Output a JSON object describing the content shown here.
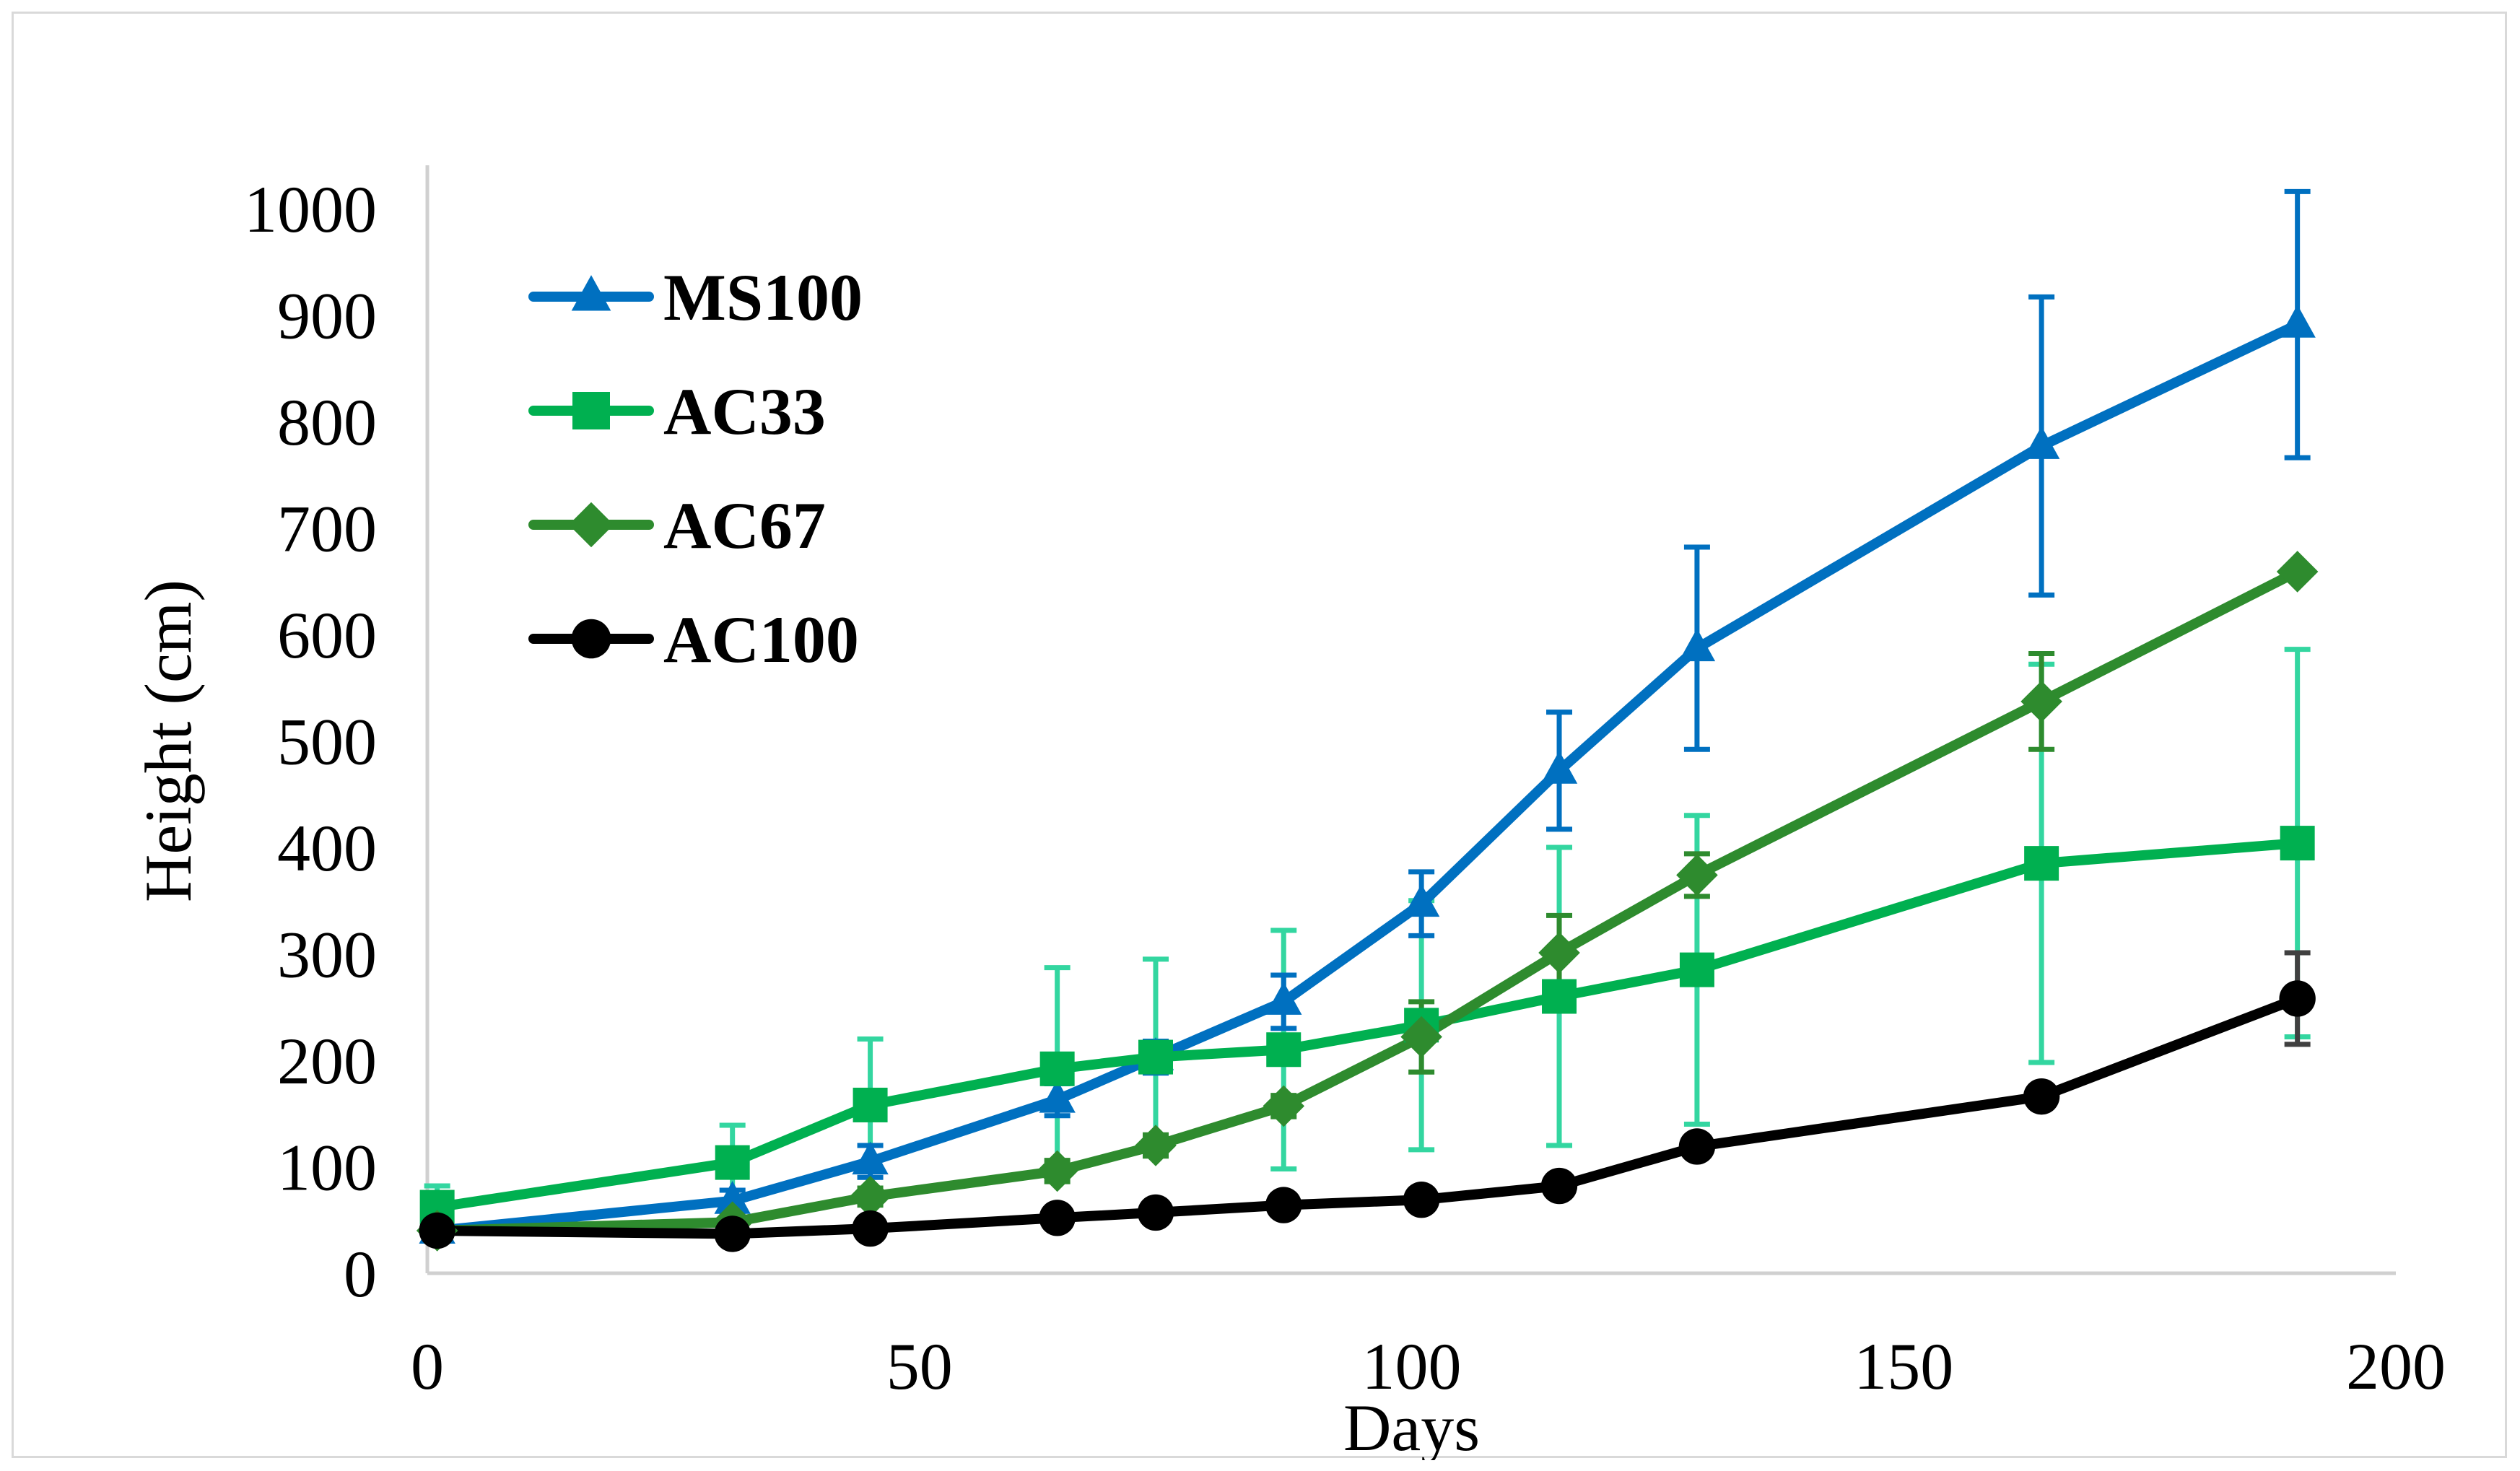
{
  "chart_data": {
    "type": "line",
    "title": "",
    "xlabel": "Days",
    "ylabel": "Height (cm)",
    "xlim": [
      0,
      200
    ],
    "ylim": [
      0,
      1000
    ],
    "xticks": [
      "0",
      "50",
      "100",
      "150",
      "200"
    ],
    "yticks": [
      "0",
      "100",
      "200",
      "300",
      "400",
      "500",
      "600",
      "700",
      "800",
      "900",
      "1000"
    ],
    "grid": false,
    "legend_position": "top-left",
    "series": [
      {
        "name": "MS100",
        "color": "#0070C0",
        "error_color": "#0070C0",
        "marker": "triangle",
        "x": [
          1,
          31,
          45,
          64,
          74,
          87,
          101,
          115,
          129,
          164,
          190
        ],
        "y": [
          40,
          68,
          105,
          163,
          203,
          255,
          347,
          472,
          587,
          777,
          891
        ],
        "error": [
          10,
          10,
          15,
          15,
          15,
          25,
          30,
          55,
          95,
          140,
          125
        ]
      },
      {
        "name": "AC33",
        "color": "#00B050",
        "error_color": "#33D6A0",
        "marker": "square",
        "x": [
          1,
          31,
          45,
          64,
          74,
          87,
          101,
          115,
          129,
          164,
          190
        ],
        "y": [
          62,
          104,
          158,
          192,
          203,
          210,
          233,
          260,
          285,
          385,
          404
        ],
        "error": [
          20,
          35,
          62,
          95,
          92,
          112,
          117,
          140,
          145,
          187,
          182
        ]
      },
      {
        "name": "AC67",
        "color": "#2E8B2E",
        "error_color": "#2E8B2E",
        "marker": "diamond",
        "x": [
          1,
          31,
          45,
          64,
          74,
          87,
          101,
          115,
          129,
          164,
          190
        ],
        "y": [
          40,
          48,
          72,
          96,
          120,
          157,
          222,
          301,
          374,
          537,
          659
        ],
        "error": [
          5,
          5,
          8,
          10,
          10,
          10,
          33,
          35,
          20,
          45,
          5
        ]
      },
      {
        "name": "AC100",
        "color": "#000000",
        "error_color": "#404040",
        "marker": "circle",
        "x": [
          1,
          31,
          45,
          64,
          74,
          87,
          101,
          115,
          129,
          164,
          190
        ],
        "y": [
          40,
          37,
          42,
          52,
          57,
          64,
          69,
          82,
          119,
          166,
          258
        ],
        "error": [
          3,
          3,
          3,
          3,
          3,
          3,
          3,
          3,
          3,
          5,
          43
        ]
      }
    ]
  }
}
